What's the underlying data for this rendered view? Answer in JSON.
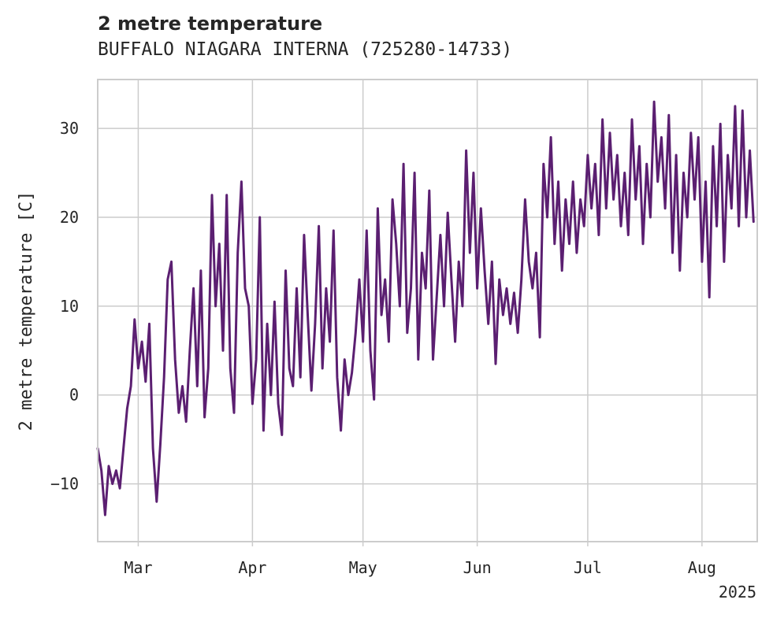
{
  "chart_data": {
    "type": "line",
    "title": "2 metre temperature",
    "subtitle": "BUFFALO NIAGARA INTERNA (725280-14733)",
    "xlabel": "",
    "ylabel": "2 metre temperature [C]",
    "x_range": [
      "2025-02-18",
      "2025-08-16"
    ],
    "ylim": [
      -16.5,
      35.5
    ],
    "yticks": [
      -10,
      0,
      10,
      20,
      30
    ],
    "ytick_labels": [
      "−10",
      "0",
      "10",
      "20",
      "30"
    ],
    "xticks": [
      "2025-03-01",
      "2025-04-01",
      "2025-05-01",
      "2025-06-01",
      "2025-07-01",
      "2025-08-01"
    ],
    "xtick_labels": [
      "Mar",
      "Apr",
      "May",
      "Jun",
      "Jul",
      "Aug"
    ],
    "year_label": "2025",
    "grid": true,
    "series": [
      {
        "color": "#5b1f71",
        "points": [
          [
            "2025-02-18",
            -6
          ],
          [
            "2025-02-19",
            -8.5
          ],
          [
            "2025-02-20",
            -13.5
          ],
          [
            "2025-02-21",
            -8
          ],
          [
            "2025-02-22",
            -10
          ],
          [
            "2025-02-23",
            -8.5
          ],
          [
            "2025-02-24",
            -10.5
          ],
          [
            "2025-02-25",
            -6
          ],
          [
            "2025-02-26",
            -1.5
          ],
          [
            "2025-02-27",
            1
          ],
          [
            "2025-02-28",
            8.5
          ],
          [
            "2025-03-01",
            3
          ],
          [
            "2025-03-02",
            6
          ],
          [
            "2025-03-03",
            1.5
          ],
          [
            "2025-03-04",
            8
          ],
          [
            "2025-03-05",
            -6
          ],
          [
            "2025-03-06",
            -12
          ],
          [
            "2025-03-07",
            -5.5
          ],
          [
            "2025-03-08",
            2
          ],
          [
            "2025-03-09",
            13
          ],
          [
            "2025-03-10",
            15
          ],
          [
            "2025-03-11",
            4
          ],
          [
            "2025-03-12",
            -2
          ],
          [
            "2025-03-13",
            1
          ],
          [
            "2025-03-14",
            -3
          ],
          [
            "2025-03-15",
            5
          ],
          [
            "2025-03-16",
            12
          ],
          [
            "2025-03-17",
            1
          ],
          [
            "2025-03-18",
            14
          ],
          [
            "2025-03-19",
            -2.5
          ],
          [
            "2025-03-20",
            3
          ],
          [
            "2025-03-21",
            22.5
          ],
          [
            "2025-03-22",
            10
          ],
          [
            "2025-03-23",
            17
          ],
          [
            "2025-03-24",
            5
          ],
          [
            "2025-03-25",
            22.5
          ],
          [
            "2025-03-26",
            3
          ],
          [
            "2025-03-27",
            -2
          ],
          [
            "2025-03-28",
            16
          ],
          [
            "2025-03-29",
            24
          ],
          [
            "2025-03-30",
            12
          ],
          [
            "2025-03-31",
            10
          ],
          [
            "2025-04-01",
            -1
          ],
          [
            "2025-04-02",
            4
          ],
          [
            "2025-04-03",
            20
          ],
          [
            "2025-04-04",
            -4
          ],
          [
            "2025-04-05",
            8
          ],
          [
            "2025-04-06",
            0
          ],
          [
            "2025-04-07",
            10.5
          ],
          [
            "2025-04-08",
            -1
          ],
          [
            "2025-04-09",
            -4.5
          ],
          [
            "2025-04-10",
            14
          ],
          [
            "2025-04-11",
            3
          ],
          [
            "2025-04-12",
            1
          ],
          [
            "2025-04-13",
            12
          ],
          [
            "2025-04-14",
            2
          ],
          [
            "2025-04-15",
            18
          ],
          [
            "2025-04-16",
            9
          ],
          [
            "2025-04-17",
            0.5
          ],
          [
            "2025-04-18",
            8
          ],
          [
            "2025-04-19",
            19
          ],
          [
            "2025-04-20",
            3
          ],
          [
            "2025-04-21",
            12
          ],
          [
            "2025-04-22",
            6
          ],
          [
            "2025-04-23",
            18.5
          ],
          [
            "2025-04-24",
            2
          ],
          [
            "2025-04-25",
            -4
          ],
          [
            "2025-04-26",
            4
          ],
          [
            "2025-04-27",
            0
          ],
          [
            "2025-04-28",
            2.5
          ],
          [
            "2025-04-29",
            7
          ],
          [
            "2025-04-30",
            13
          ],
          [
            "2025-05-01",
            6
          ],
          [
            "2025-05-02",
            18.5
          ],
          [
            "2025-05-03",
            5
          ],
          [
            "2025-05-04",
            -0.5
          ],
          [
            "2025-05-05",
            21
          ],
          [
            "2025-05-06",
            9
          ],
          [
            "2025-05-07",
            13
          ],
          [
            "2025-05-08",
            6
          ],
          [
            "2025-05-09",
            22
          ],
          [
            "2025-05-10",
            17
          ],
          [
            "2025-05-11",
            10
          ],
          [
            "2025-05-12",
            26
          ],
          [
            "2025-05-13",
            7
          ],
          [
            "2025-05-14",
            12
          ],
          [
            "2025-05-15",
            25
          ],
          [
            "2025-05-16",
            4
          ],
          [
            "2025-05-17",
            16
          ],
          [
            "2025-05-18",
            12
          ],
          [
            "2025-05-19",
            23
          ],
          [
            "2025-05-20",
            4
          ],
          [
            "2025-05-21",
            11
          ],
          [
            "2025-05-22",
            18
          ],
          [
            "2025-05-23",
            10
          ],
          [
            "2025-05-24",
            20.5
          ],
          [
            "2025-05-25",
            13
          ],
          [
            "2025-05-26",
            6
          ],
          [
            "2025-05-27",
            15
          ],
          [
            "2025-05-28",
            10
          ],
          [
            "2025-05-29",
            27.5
          ],
          [
            "2025-05-30",
            16
          ],
          [
            "2025-05-31",
            25
          ],
          [
            "2025-06-01",
            12
          ],
          [
            "2025-06-02",
            21
          ],
          [
            "2025-06-03",
            14
          ],
          [
            "2025-06-04",
            8
          ],
          [
            "2025-06-05",
            15
          ],
          [
            "2025-06-06",
            3.5
          ],
          [
            "2025-06-07",
            13
          ],
          [
            "2025-06-08",
            9
          ],
          [
            "2025-06-09",
            12
          ],
          [
            "2025-06-10",
            8
          ],
          [
            "2025-06-11",
            11.5
          ],
          [
            "2025-06-12",
            7
          ],
          [
            "2025-06-13",
            13
          ],
          [
            "2025-06-14",
            22
          ],
          [
            "2025-06-15",
            15
          ],
          [
            "2025-06-16",
            12
          ],
          [
            "2025-06-17",
            16
          ],
          [
            "2025-06-18",
            6.5
          ],
          [
            "2025-06-19",
            26
          ],
          [
            "2025-06-20",
            20
          ],
          [
            "2025-06-21",
            29
          ],
          [
            "2025-06-22",
            17
          ],
          [
            "2025-06-23",
            24
          ],
          [
            "2025-06-24",
            14
          ],
          [
            "2025-06-25",
            22
          ],
          [
            "2025-06-26",
            17
          ],
          [
            "2025-06-27",
            24
          ],
          [
            "2025-06-28",
            16
          ],
          [
            "2025-06-29",
            22
          ],
          [
            "2025-06-30",
            19
          ],
          [
            "2025-07-01",
            27
          ],
          [
            "2025-07-02",
            21
          ],
          [
            "2025-07-03",
            26
          ],
          [
            "2025-07-04",
            18
          ],
          [
            "2025-07-05",
            31
          ],
          [
            "2025-07-06",
            21
          ],
          [
            "2025-07-07",
            29.5
          ],
          [
            "2025-07-08",
            22
          ],
          [
            "2025-07-09",
            27
          ],
          [
            "2025-07-10",
            19
          ],
          [
            "2025-07-11",
            25
          ],
          [
            "2025-07-12",
            18
          ],
          [
            "2025-07-13",
            31
          ],
          [
            "2025-07-14",
            22
          ],
          [
            "2025-07-15",
            28
          ],
          [
            "2025-07-16",
            17
          ],
          [
            "2025-07-17",
            26
          ],
          [
            "2025-07-18",
            20
          ],
          [
            "2025-07-19",
            33
          ],
          [
            "2025-07-20",
            24
          ],
          [
            "2025-07-21",
            29
          ],
          [
            "2025-07-22",
            21
          ],
          [
            "2025-07-23",
            31.5
          ],
          [
            "2025-07-24",
            16
          ],
          [
            "2025-07-25",
            27
          ],
          [
            "2025-07-26",
            14
          ],
          [
            "2025-07-27",
            25
          ],
          [
            "2025-07-28",
            20
          ],
          [
            "2025-07-29",
            29.5
          ],
          [
            "2025-07-30",
            22
          ],
          [
            "2025-07-31",
            29
          ],
          [
            "2025-08-01",
            15
          ],
          [
            "2025-08-02",
            24
          ],
          [
            "2025-08-03",
            11
          ],
          [
            "2025-08-04",
            28
          ],
          [
            "2025-08-05",
            19
          ],
          [
            "2025-08-06",
            30.5
          ],
          [
            "2025-08-07",
            15
          ],
          [
            "2025-08-08",
            27
          ],
          [
            "2025-08-09",
            21
          ],
          [
            "2025-08-10",
            32.5
          ],
          [
            "2025-08-11",
            19
          ],
          [
            "2025-08-12",
            32
          ],
          [
            "2025-08-13",
            20
          ],
          [
            "2025-08-14",
            27.5
          ],
          [
            "2025-08-15",
            19.5
          ]
        ]
      }
    ]
  }
}
